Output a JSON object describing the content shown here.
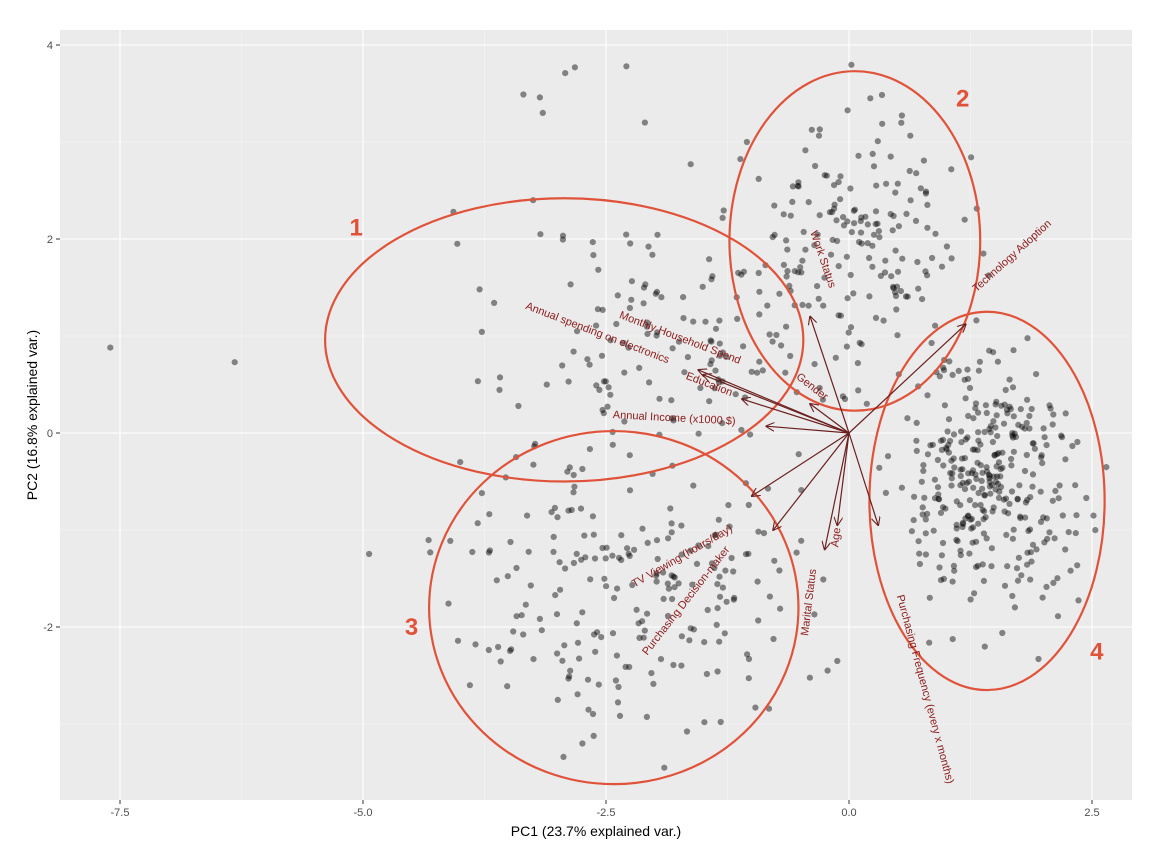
{
  "chart_data": {
    "type": "scatter",
    "subtype": "pca-biplot",
    "title": "",
    "xlabel": "PC1 (23.7% explained var.)",
    "ylabel": "PC2 (16.8% explained var.)",
    "xlim": [
      -8.0,
      2.85
    ],
    "ylim": [
      -3.75,
      4.15
    ],
    "x_ticks": [
      -7.5,
      -5.0,
      -2.5,
      0.0,
      2.5
    ],
    "x_tick_labels": [
      "-7.5",
      "-5.0",
      "-2.5",
      "0.0",
      "2.5"
    ],
    "y_ticks": [
      -2,
      0,
      2,
      4
    ],
    "y_tick_labels": [
      "-2",
      "0",
      "2",
      "4"
    ],
    "grid": true,
    "legend": "none",
    "colors": {
      "panel_bg": "#ebebeb",
      "grid_major": "#ffffff",
      "point": "#000000",
      "point_alpha": 0.45,
      "arrow": "#6b1f1f",
      "loading_text": "#8b1a1a",
      "ellipse": "#e0533a"
    },
    "loadings": [
      {
        "name": "Monthly Household Spend",
        "x": -1.55,
        "y": 0.65,
        "label_x": -1.75,
        "label_y": 0.95,
        "angle": 21
      },
      {
        "name": "Annual spending on electronics",
        "x": -1.5,
        "y": 0.6,
        "label_x": -2.6,
        "label_y": 1.0,
        "angle": 21
      },
      {
        "name": "Education",
        "x": -1.1,
        "y": 0.35,
        "label_x": -1.45,
        "label_y": 0.47,
        "angle": 21
      },
      {
        "name": "Annual Income (x1000 $)",
        "x": -0.85,
        "y": 0.07,
        "label_x": -1.8,
        "label_y": 0.12,
        "angle": 3
      },
      {
        "name": "Gender",
        "x": -0.4,
        "y": 0.3,
        "label_x": -0.4,
        "label_y": 0.45,
        "angle": 38
      },
      {
        "name": "Work Status",
        "x": -0.4,
        "y": 1.2,
        "label_x": -0.3,
        "label_y": 1.78,
        "angle": 71
      },
      {
        "name": "Technology Adoption",
        "x": 1.2,
        "y": 1.12,
        "label_x": 1.7,
        "label_y": 1.8,
        "angle": -42
      },
      {
        "name": "TV Viewing (hours/day)",
        "x": -1.0,
        "y": -0.65,
        "label_x": -1.7,
        "label_y": -1.3,
        "angle": -30
      },
      {
        "name": "Purchasing Decision-maker",
        "x": -0.78,
        "y": -1.0,
        "label_x": -1.65,
        "label_y": -1.75,
        "angle": -52
      },
      {
        "name": "Marital Status",
        "x": -0.25,
        "y": -1.2,
        "label_x": -0.38,
        "label_y": -1.75,
        "angle": -83
      },
      {
        "name": "Age",
        "x": -0.12,
        "y": -0.95,
        "label_x": -0.1,
        "label_y": -1.08,
        "angle": -83
      },
      {
        "name": "Purchasing Frequency (every x months)",
        "x": 0.3,
        "y": -0.95,
        "label_x": 0.75,
        "label_y": -2.65,
        "angle": 75
      }
    ],
    "clusters": [
      {
        "id": "1",
        "label_x": -5.07,
        "label_y": 2.12,
        "ellipse": {
          "cx": -2.93,
          "cy": 0.96,
          "rx": 2.46,
          "ry": 1.46,
          "rotate": 0
        }
      },
      {
        "id": "2",
        "label_x": 1.17,
        "label_y": 3.45,
        "ellipse": {
          "cx": 0.06,
          "cy": 1.98,
          "rx": 1.29,
          "ry": 1.75,
          "rotate": 0
        }
      },
      {
        "id": "3",
        "label_x": -4.5,
        "label_y": -2.0,
        "ellipse": {
          "cx": -2.42,
          "cy": -1.8,
          "rx": 1.9,
          "ry": 1.82,
          "rotate": 0
        }
      },
      {
        "id": "4",
        "label_x": 2.55,
        "label_y": -2.25,
        "ellipse": {
          "cx": 1.42,
          "cy": -0.7,
          "rx": 1.21,
          "ry": 1.95,
          "rotate": 0
        }
      }
    ],
    "point_groups": [
      {
        "cluster": "1",
        "n": 130,
        "mx": -1.8,
        "my": 1.0,
        "sx": 0.8,
        "sy": 0.65,
        "seed": 11
      },
      {
        "cluster": "2",
        "n": 170,
        "mx": 0.05,
        "my": 1.95,
        "sx": 0.55,
        "sy": 0.6,
        "seed": 23
      },
      {
        "cluster": "3",
        "n": 220,
        "mx": -2.3,
        "my": -1.55,
        "sx": 0.85,
        "sy": 0.75,
        "seed": 37
      },
      {
        "cluster": "4",
        "n": 330,
        "mx": 1.45,
        "my": -0.55,
        "sx": 0.45,
        "sy": 0.65,
        "seed": 51
      }
    ],
    "outliers": [
      [
        -7.6,
        0.88
      ],
      [
        -6.32,
        0.73
      ],
      [
        -3.35,
        3.49
      ],
      [
        -3.18,
        3.46
      ],
      [
        -3.15,
        3.3
      ],
      [
        -2.92,
        3.71
      ],
      [
        -2.82,
        3.77
      ],
      [
        -2.29,
        3.78
      ],
      [
        -4.07,
        2.28
      ],
      [
        -4.03,
        1.95
      ],
      [
        -3.8,
        1.48
      ],
      [
        -3.25,
        2.4
      ],
      [
        -2.1,
        3.2
      ],
      [
        -1.05,
        3.0
      ],
      [
        -0.3,
        3.13
      ],
      [
        -4.0,
        -0.3
      ],
      [
        -3.9,
        -2.6
      ],
      [
        -3.82,
        -0.93
      ],
      [
        -1.9,
        -3.45
      ],
      [
        -0.22,
        -2.45
      ],
      [
        -0.12,
        -2.35
      ],
      [
        1.95,
        -2.33
      ],
      [
        2.28,
        -1.42
      ],
      [
        2.2,
        -0.85
      ]
    ]
  }
}
